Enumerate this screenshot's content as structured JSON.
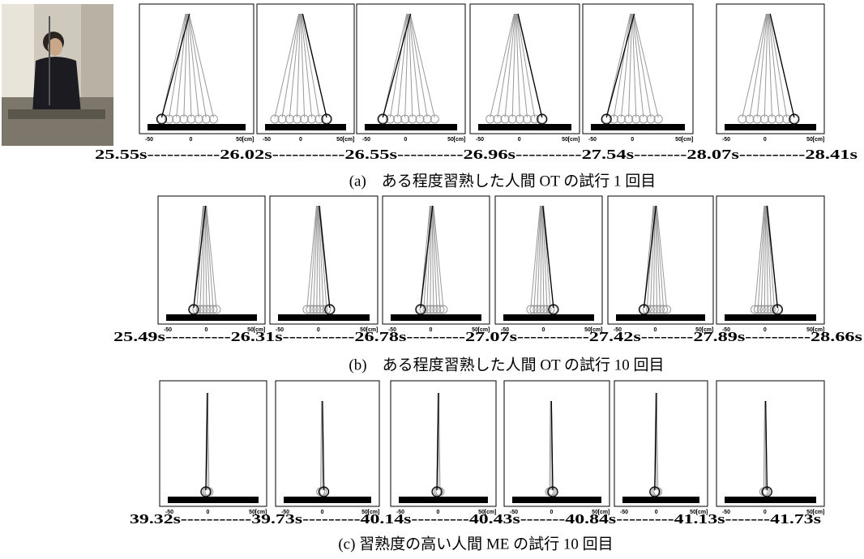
{
  "figure": {
    "rows": [
      {
        "times": "25.55s-----------26.02s-----------26.55s----------26.96s----------27.54s--------28.07s----------28.41s",
        "caption": "(a)　ある程度習熟した人間 OT の試行 1 回目"
      },
      {
        "times": "25.49s----------26.31s-----------26.78s---------27.07s-----------27.42s--------27.89s----------28.66s",
        "caption": "(b)　ある程度習熟した人間 OT の試行 10 回目"
      },
      {
        "times": "39.32s-----------39.73s---------40.14s---------40.43s-------40.84s---------41.13s-------41.73s",
        "caption": "(c) 習熟度の高い人間 ME の試行 10 回目"
      }
    ],
    "axis": {
      "ticks": [
        "-50",
        "0",
        "50"
      ],
      "unit": "[cm]"
    }
  }
}
